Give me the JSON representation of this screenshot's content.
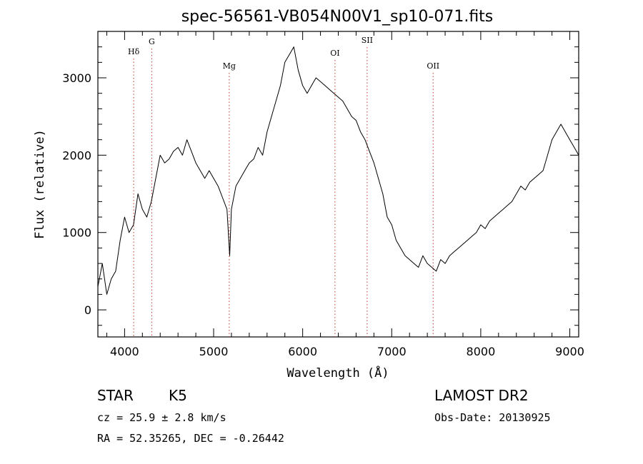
{
  "chart_data": {
    "type": "line",
    "title": "spec-56561-VB054N00V1_sp10-071.fits",
    "xlabel": "Wavelength (Å)",
    "ylabel": "Flux (relative)",
    "xlim": [
      3700,
      9100
    ],
    "ylim": [
      -350,
      3600
    ],
    "xticks": [
      4000,
      5000,
      6000,
      7000,
      8000,
      9000
    ],
    "yticks": [
      0,
      1000,
      2000,
      3000
    ],
    "grid": false,
    "series": [
      {
        "x": [
          3700,
          3750,
          3800,
          3850,
          3900,
          3950,
          4000,
          4050,
          4100,
          4150,
          4200,
          4250,
          4300,
          4350,
          4400,
          4450,
          4500,
          4550,
          4600,
          4650,
          4700,
          4750,
          4800,
          4850,
          4900,
          4950,
          5000,
          5050,
          5100,
          5150,
          5180,
          5200,
          5250,
          5300,
          5350,
          5400,
          5450,
          5500,
          5550,
          5600,
          5650,
          5700,
          5750,
          5800,
          5850,
          5900,
          5950,
          6000,
          6050,
          6100,
          6150,
          6200,
          6250,
          6300,
          6350,
          6400,
          6450,
          6500,
          6550,
          6600,
          6650,
          6700,
          6750,
          6800,
          6850,
          6900,
          6950,
          7000,
          7050,
          7100,
          7150,
          7200,
          7250,
          7300,
          7350,
          7400,
          7450,
          7500,
          7550,
          7600,
          7650,
          7700,
          7750,
          7800,
          7850,
          7900,
          7950,
          8000,
          8050,
          8100,
          8150,
          8200,
          8250,
          8300,
          8350,
          8400,
          8450,
          8500,
          8550,
          8600,
          8650,
          8700,
          8750,
          8800,
          8850,
          8900,
          8950,
          9000,
          9050,
          9100
        ],
        "y": [
          300,
          600,
          200,
          400,
          500,
          900,
          1200,
          1000,
          1100,
          1500,
          1300,
          1200,
          1400,
          1700,
          2000,
          1900,
          1950,
          2050,
          2100,
          2000,
          2200,
          2050,
          1900,
          1800,
          1700,
          1800,
          1700,
          1600,
          1450,
          1300,
          700,
          1300,
          1600,
          1700,
          1800,
          1900,
          1950,
          2100,
          2000,
          2300,
          2500,
          2700,
          2900,
          3200,
          3300,
          3400,
          3100,
          2900,
          2800,
          2900,
          3000,
          2950,
          2900,
          2850,
          2800,
          2750,
          2700,
          2600,
          2500,
          2450,
          2300,
          2200,
          2050,
          1900,
          1700,
          1500,
          1200,
          1100,
          900,
          800,
          700,
          650,
          600,
          550,
          700,
          600,
          550,
          500,
          650,
          600,
          700,
          750,
          800,
          850,
          900,
          950,
          1000,
          1100,
          1050,
          1150,
          1200,
          1250,
          1300,
          1350,
          1400,
          1500,
          1600,
          1550,
          1650,
          1700,
          1750,
          1800,
          2000,
          2200,
          2300,
          2400,
          2300,
          2200,
          2100,
          2000
        ]
      }
    ],
    "annotations": [
      {
        "label": "Hδ",
        "x": 4102
      },
      {
        "label": "G",
        "x": 4305
      },
      {
        "label": "Mg",
        "x": 5175
      },
      {
        "label": "OI",
        "x": 6363
      },
      {
        "label": "SII",
        "x": 6724
      },
      {
        "label": "OII",
        "x": 7465
      }
    ]
  },
  "info": {
    "class_label": "STAR",
    "subclass_label": "K5",
    "survey_label": "LAMOST DR2",
    "redshift_text": "cz = 25.9 ± 2.8 km/s",
    "obs_date_text": "Obs-Date: 20130925",
    "coords_text": "RA =  52.35265, DEC =  -0.26442"
  }
}
